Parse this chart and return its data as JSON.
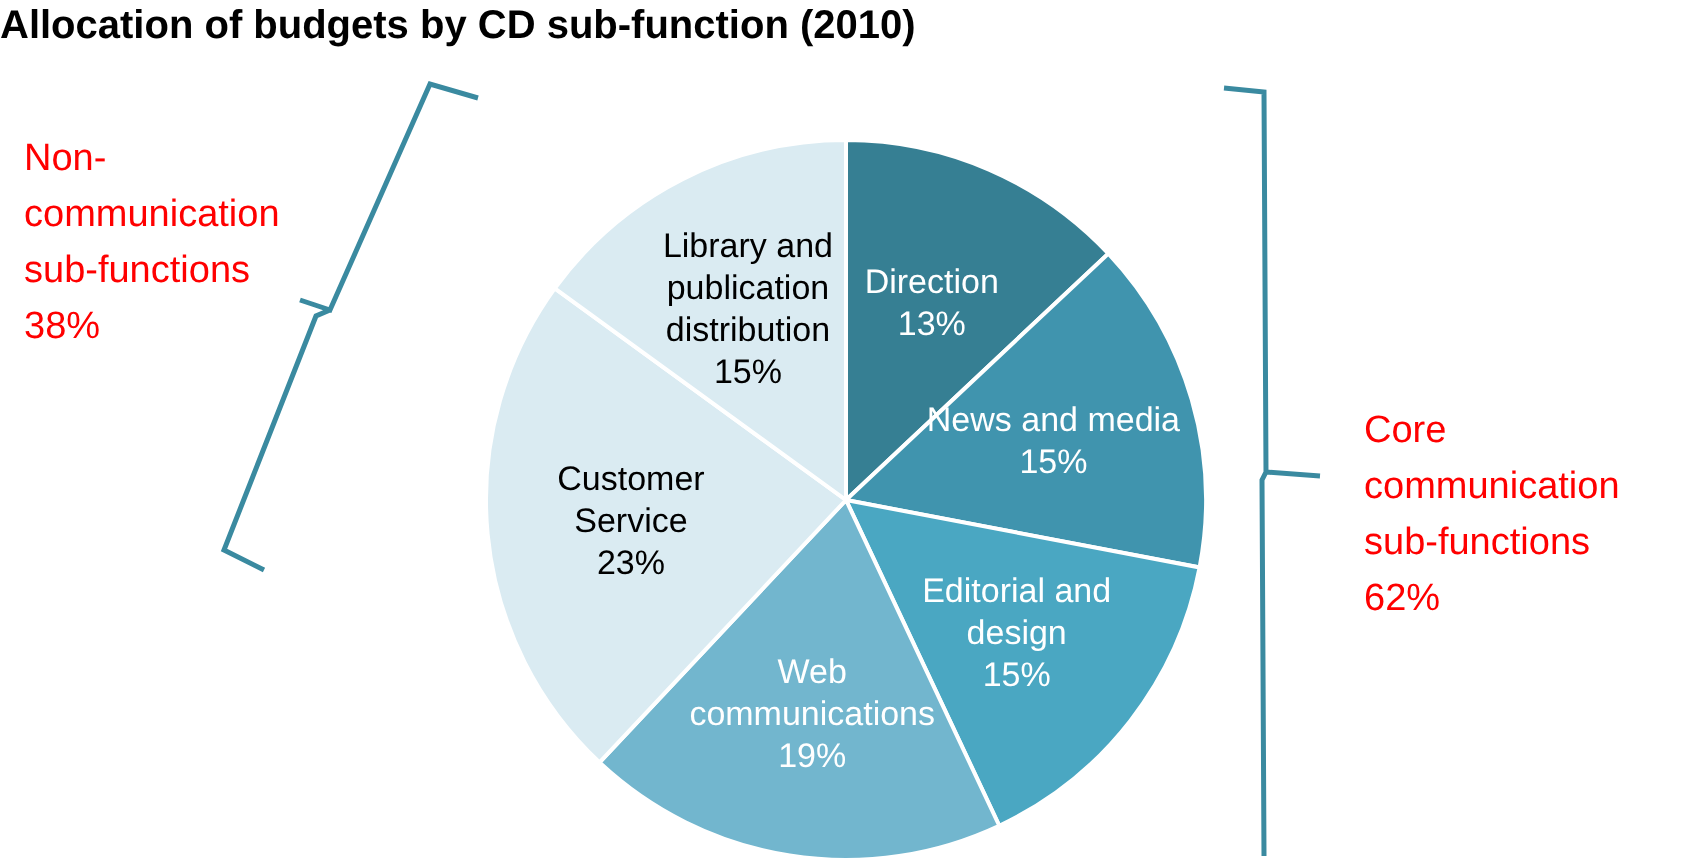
{
  "chart_data": {
    "type": "pie",
    "title": "Allocation of budgets by CD sub-function (2010)",
    "categories": [
      "Direction",
      "News and media",
      "Editorial and design",
      "Web communications",
      "Customer Service",
      "Library and publication distribution"
    ],
    "values": [
      13,
      15,
      15,
      19,
      23,
      15
    ],
    "colors": [
      "#367f93",
      "#4094ae",
      "#4aa7c2",
      "#72b6ce",
      "#daebf2",
      "#daebf2"
    ],
    "value_labels": [
      "13%",
      "15%",
      "15%",
      "19%",
      "23%",
      "15%"
    ],
    "annotations": [
      "Non-communication sub-functions 38%",
      "Core communication sub-functions 62%"
    ]
  }
}
